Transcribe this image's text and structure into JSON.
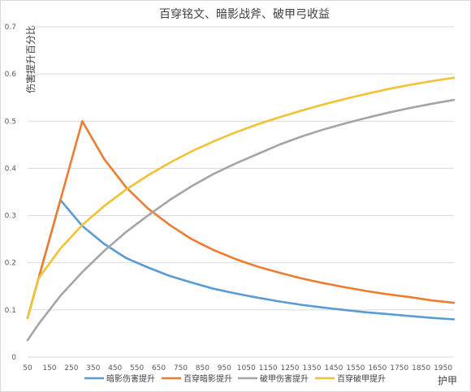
{
  "chart_data": {
    "type": "line",
    "title": "百穿铭文、暗影战斧、破甲弓收益",
    "ylabel": "伤害提升百分比",
    "xlabel": "护甲",
    "ylim": [
      0,
      0.7
    ],
    "yticks": [
      "0",
      "0.1",
      "0.2",
      "0.3",
      "0.4",
      "0.5",
      "0.6",
      "0.7"
    ],
    "xticks": [
      "50",
      "150",
      "250",
      "350",
      "450",
      "550",
      "650",
      "750",
      "850",
      "950",
      "1050",
      "1150",
      "1250",
      "1350",
      "1450",
      "1550",
      "1650",
      "1750",
      "1850",
      "1950"
    ],
    "x": [
      50,
      100,
      200,
      300,
      400,
      500,
      600,
      700,
      800,
      900,
      1000,
      1100,
      1200,
      1300,
      1400,
      1500,
      1600,
      1700,
      1800,
      1900,
      2000
    ],
    "grid": true,
    "legend_position": "bottom",
    "series": [
      {
        "name": "暗影伤害提升",
        "color": "#5b9bd5",
        "values": [
          0.083,
          0.167,
          0.333,
          0.278,
          0.24,
          0.21,
          0.19,
          0.172,
          0.158,
          0.145,
          0.135,
          0.126,
          0.118,
          0.111,
          0.105,
          0.1,
          0.095,
          0.091,
          0.087,
          0.083,
          0.08
        ]
      },
      {
        "name": "百穿暗影提升",
        "color": "#ed7d31",
        "values": [
          0.083,
          0.167,
          0.333,
          0.5,
          0.42,
          0.36,
          0.315,
          0.28,
          0.25,
          0.227,
          0.208,
          0.192,
          0.179,
          0.167,
          0.157,
          0.148,
          0.14,
          0.133,
          0.127,
          0.12,
          0.115
        ]
      },
      {
        "name": "破甲伤害提升",
        "color": "#a5a5a5",
        "values": [
          0.036,
          0.07,
          0.13,
          0.18,
          0.225,
          0.265,
          0.3,
          0.333,
          0.362,
          0.388,
          0.41,
          0.43,
          0.45,
          0.467,
          0.482,
          0.495,
          0.507,
          0.518,
          0.528,
          0.537,
          0.545
        ]
      },
      {
        "name": "百穿破甲提升",
        "color": "#f2c234",
        "values": [
          0.083,
          0.167,
          0.23,
          0.28,
          0.32,
          0.355,
          0.385,
          0.412,
          0.436,
          0.457,
          0.476,
          0.493,
          0.508,
          0.522,
          0.535,
          0.547,
          0.558,
          0.568,
          0.577,
          0.585,
          0.592
        ]
      }
    ]
  }
}
